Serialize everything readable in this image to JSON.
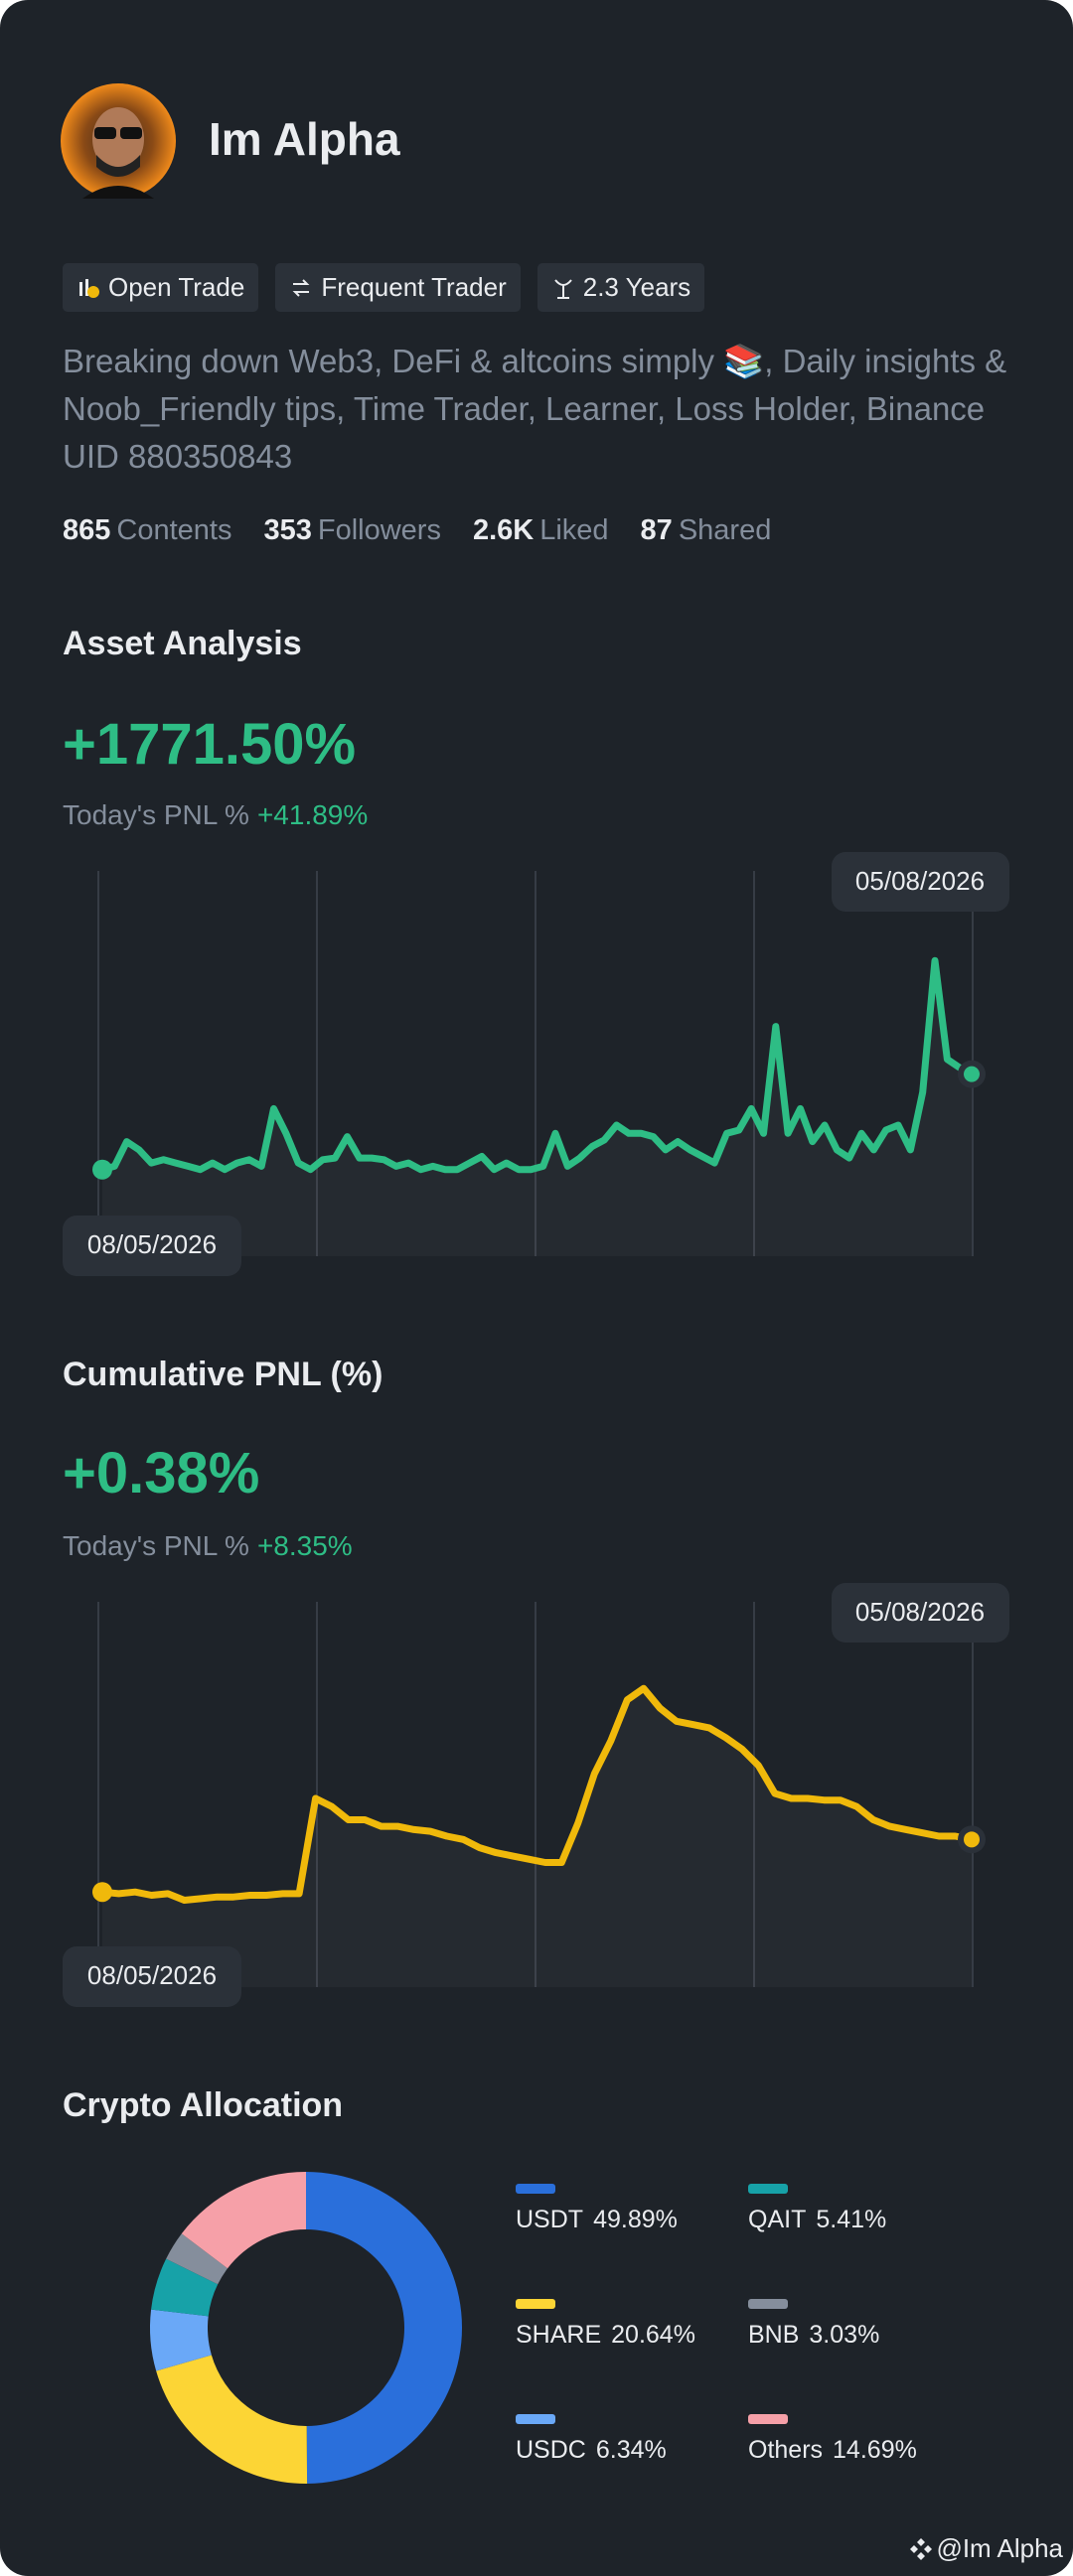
{
  "profile": {
    "name": "Im Alpha",
    "tags": [
      "Open Trade",
      "Frequent Trader",
      "2.3 Years"
    ],
    "bio": "Breaking down Web3, DeFi & altcoins simply 📚, Daily insights & Noob_Friendly tips, Time Trader, Learner, Loss Holder, Binance UID 880350843",
    "stats": [
      {
        "value": 865,
        "label": "Contents"
      },
      {
        "value": 353,
        "label": "Followers"
      },
      {
        "value": "2.6K",
        "label": "Liked"
      },
      {
        "value": 87,
        "label": "Shared"
      }
    ]
  },
  "chart_data": [
    {
      "type": "line",
      "title": "Asset Analysis",
      "headline": "+1771.50%",
      "today_label": "Today's PNL %",
      "today_value": "+41.89%",
      "start_label": "08/05/2026",
      "end_label": "05/08/2026",
      "color": "#2ebd85",
      "ylim": [
        0,
        140
      ],
      "values": [
        8,
        10,
        25,
        20,
        12,
        14,
        12,
        10,
        8,
        12,
        8,
        12,
        14,
        10,
        45,
        30,
        12,
        8,
        14,
        15,
        28,
        15,
        15,
        14,
        10,
        12,
        8,
        10,
        8,
        8,
        12,
        16,
        8,
        12,
        8,
        8,
        10,
        30,
        10,
        15,
        22,
        26,
        35,
        30,
        30,
        28,
        20,
        25,
        20,
        16,
        12,
        30,
        32,
        45,
        30,
        95,
        30,
        45,
        25,
        35,
        20,
        15,
        30,
        20,
        32,
        35,
        20,
        55,
        135,
        75,
        70,
        66
      ]
    },
    {
      "type": "line",
      "title": "Cumulative PNL (%)",
      "headline": "+0.38%",
      "today_label": "Today's PNL %",
      "today_value": "+8.35%",
      "start_label": "08/05/2026",
      "end_label": "05/08/2026",
      "color": "#f0b90b",
      "ylim": [
        0,
        150
      ],
      "values": [
        18,
        17,
        18,
        16,
        17,
        13,
        14,
        15,
        15,
        16,
        16,
        17,
        17,
        75,
        70,
        62,
        62,
        58,
        58,
        56,
        55,
        52,
        50,
        45,
        42,
        40,
        38,
        36,
        36,
        60,
        90,
        110,
        135,
        142,
        130,
        122,
        120,
        118,
        112,
        105,
        95,
        78,
        75,
        75,
        74,
        74,
        70,
        62,
        58,
        56,
        54,
        52,
        52,
        50
      ]
    },
    {
      "type": "donut",
      "title": "Crypto Allocation",
      "categories": [
        "USDT",
        "SHARE",
        "USDC",
        "QAIT",
        "BNB",
        "Others"
      ],
      "values": [
        49.89,
        20.64,
        6.34,
        5.41,
        3.03,
        14.69
      ],
      "value_labels": [
        "49.89%",
        "20.64%",
        "6.34%",
        "5.41%",
        "3.03%",
        "14.69%"
      ],
      "colors": [
        "#2a6fdb",
        "#fcd535",
        "#6aa8f7",
        "#17a2a8",
        "#858e9c",
        "#f6a0a8"
      ]
    }
  ],
  "footer": {
    "watermark": "@Im Alpha"
  }
}
